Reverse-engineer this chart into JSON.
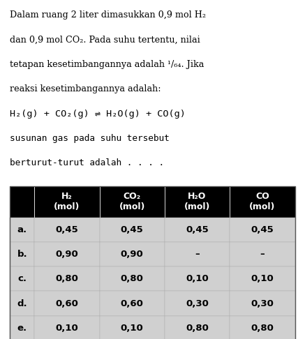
{
  "title_lines": [
    "Dalam ruang 2 liter dimasukkan 0,9 mol H₂",
    "dan 0,9 mol CO₂. Pada suhu tertentu, nilai",
    "tetapan kesetimbangannya adalah ¹/₆₄. Jika",
    "reaksi kesetimbangannya adalah:",
    "H₂(g) + CO₂(g) ⇌ H₂O(g) + CO(g)",
    "susunan gas pada suhu tersebut",
    "berturut-turut adalah . . . ."
  ],
  "header_bg": "#000000",
  "header_fg": "#ffffff",
  "table_bg": "#d0d0d0",
  "table_fg": "#000000",
  "col_headers": [
    "H₂\n(mol)",
    "CO₂\n(mol)",
    "H₂O\n(mol)",
    "CO\n(mol)"
  ],
  "row_labels": [
    "a.",
    "b.",
    "c.",
    "d.",
    "e."
  ],
  "rows": [
    [
      "0,45",
      "0,45",
      "0,45",
      "0,45"
    ],
    [
      "0,90",
      "0,90",
      "–",
      "–"
    ],
    [
      "0,80",
      "0,80",
      "0,10",
      "0,10"
    ],
    [
      "0,60",
      "0,60",
      "0,30",
      "0,30"
    ],
    [
      "0,10",
      "0,10",
      "0,80",
      "0,80"
    ]
  ],
  "bg_color": "#ffffff",
  "font_size_text": 11.5,
  "font_size_table": 11.5
}
